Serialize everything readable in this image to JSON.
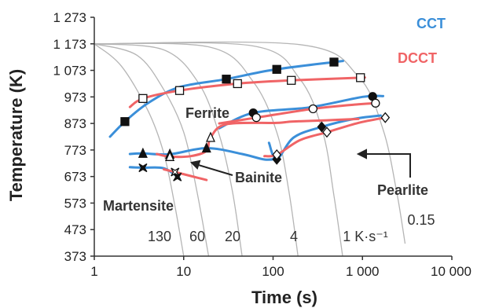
{
  "chart_data": {
    "type": "line",
    "title": "",
    "xlabel": "Time (s)",
    "ylabel": "Temperature (K)",
    "xscale": "log",
    "xlim": [
      1,
      10000
    ],
    "ylim": [
      373,
      1273
    ],
    "grid": false,
    "legend_position": "top-right",
    "x_ticks": [
      1,
      10,
      100,
      1000,
      10000
    ],
    "x_tick_labels": [
      "1",
      "10",
      "100",
      "1 000",
      "10 000"
    ],
    "y_ticks": [
      373,
      473,
      573,
      673,
      773,
      873,
      973,
      1073,
      1173,
      1273
    ],
    "y_tick_labels": [
      "373",
      "473",
      "573",
      "673",
      "773",
      "873",
      "973",
      "1 073",
      "1 173",
      "1 273"
    ],
    "colors": {
      "CCT": "#3b8fd9",
      "DCCT": "#f06466",
      "cooling": "#b5b5b5",
      "axis": "#333333"
    },
    "legend": [
      {
        "name": "CCT",
        "color": "#3b8fd9"
      },
      {
        "name": "DCCT",
        "color": "#f06466"
      }
    ],
    "annotations": {
      "ferrite": "Ferrite",
      "pearlite": "Pearlite",
      "bainite": "Bainite",
      "martensite": "Martensite"
    },
    "cooling_rate_labels": [
      "130",
      "60",
      "20",
      "4",
      "1 K·s⁻¹",
      "0.15"
    ],
    "cooling_curves": [
      {
        "rate": "130",
        "x": [
          1,
          2,
          4,
          6,
          8,
          10
        ],
        "y": [
          1173,
          1090,
          920,
          760,
          560,
          373
        ]
      },
      {
        "rate": "60",
        "x": [
          1,
          3,
          6,
          10,
          14,
          19
        ],
        "y": [
          1173,
          1130,
          1000,
          840,
          620,
          373
        ]
      },
      {
        "rate": "20",
        "x": [
          1,
          6,
          15,
          25,
          35,
          45
        ],
        "y": [
          1173,
          1150,
          1020,
          830,
          620,
          373
        ]
      },
      {
        "rate": "4",
        "x": [
          1,
          20,
          60,
          110,
          150,
          190
        ],
        "y": [
          1173,
          1160,
          1030,
          840,
          620,
          373
        ]
      },
      {
        "rate": "1 K·s⁻¹",
        "x": [
          1,
          60,
          200,
          360,
          480,
          600
        ],
        "y": [
          1173,
          1165,
          1040,
          840,
          600,
          373
        ]
      },
      {
        "rate": "0.15",
        "x": [
          1,
          200,
          900,
          1700,
          2400,
          3000
        ],
        "y": [
          1173,
          1170,
          1050,
          850,
          620,
          420
        ]
      }
    ],
    "series": [
      {
        "name": "CCT",
        "phase": "Ferrite start",
        "marker": "square-filled",
        "x": [
          1.5,
          2.2,
          4,
          9,
          30,
          100,
          500,
          600
        ],
        "y": [
          823,
          880,
          950,
          1010,
          1040,
          1075,
          1105,
          1108
        ],
        "markers_x": [
          2.2,
          30,
          110,
          480
        ]
      },
      {
        "name": "DCCT",
        "phase": "Ferrite start",
        "marker": "square-open",
        "x": [
          2.5,
          3.5,
          9,
          40,
          150,
          900,
          1000
        ],
        "y": [
          935,
          967,
          997,
          1023,
          1035,
          1045,
          1046
        ],
        "markers_x": [
          3.5,
          9,
          40,
          160,
          950
        ]
      },
      {
        "name": "CCT",
        "phase": "Pearlite start",
        "marker": "circle-filled",
        "x": [
          25,
          60,
          250,
          1000,
          1700
        ],
        "y": [
          855,
          913,
          933,
          973,
          976
        ],
        "markers_x": [
          60,
          1300
        ]
      },
      {
        "name": "DCCT",
        "phase": "Pearlite start",
        "marker": "circle-open",
        "x": [
          25,
          65,
          280,
          900,
          1500
        ],
        "y": [
          873,
          895,
          928,
          945,
          950
        ],
        "markers_x": [
          65,
          280,
          1400
        ]
      },
      {
        "name": "CCT",
        "phase": "Pearlite finish",
        "marker": "diamond-filled",
        "x": [
          90,
          110,
          170,
          350,
          800,
          1600
        ],
        "y": [
          800,
          738,
          820,
          860,
          890,
          903
        ],
        "markers_x": [
          110,
          350
        ]
      },
      {
        "name": "DCCT",
        "phase": "Pearlite finish",
        "marker": "diamond-open",
        "x": [
          80,
          110,
          200,
          400,
          900,
          1800
        ],
        "y": [
          750,
          755,
          810,
          840,
          875,
          895
        ],
        "markers_x": [
          110,
          400,
          1800
        ]
      },
      {
        "name": "CCT",
        "phase": "Bainite start",
        "marker": "triangle-filled",
        "x": [
          2.5,
          3.5,
          7,
          18,
          45,
          80,
          110
        ],
        "y": [
          758,
          760,
          757,
          780,
          758,
          737,
          740
        ],
        "markers_x": [
          3.5,
          7,
          18
        ]
      },
      {
        "name": "DCCT",
        "phase": "Bainite start",
        "marker": "triangle-open",
        "x": [
          5,
          7,
          12,
          18,
          20,
          30,
          110,
          160,
          400,
          900
        ],
        "y": [
          758,
          748,
          750,
          770,
          820,
          870,
          875,
          880,
          885,
          890
        ],
        "markers_x": [
          7,
          20
        ]
      },
      {
        "name": "CCT",
        "phase": "Martensite start",
        "marker": "cross-filled",
        "x": [
          2.5,
          3.5,
          6,
          9
        ],
        "y": [
          708,
          706,
          704,
          666
        ],
        "markers_x": [
          3.5,
          8.5
        ]
      },
      {
        "name": "DCCT",
        "phase": "Martensite start",
        "marker": "cross-open",
        "x": [
          6,
          8,
          12,
          18
        ],
        "y": [
          700,
          690,
          675,
          660
        ],
        "markers_x": [
          8
        ]
      }
    ]
  }
}
